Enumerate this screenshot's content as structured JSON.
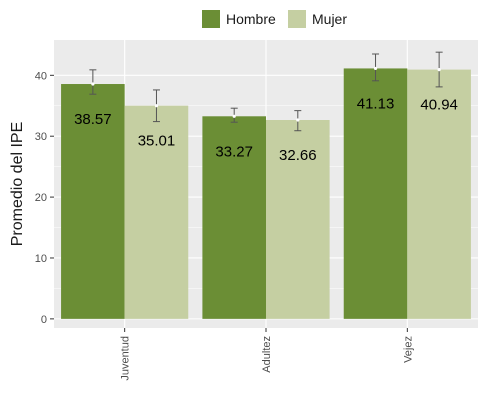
{
  "chart_data": {
    "type": "bar",
    "title": "",
    "xlabel": "",
    "ylabel": "Promedio del IPE",
    "categories": [
      "Juventud",
      "Adultez",
      "Vejez"
    ],
    "series": [
      {
        "name": "Hombre",
        "color": "#6b8e35",
        "values": [
          38.57,
          33.27,
          41.13
        ],
        "err_low": [
          36.9,
          32.3,
          39.1
        ],
        "err_high": [
          40.9,
          34.6,
          43.5
        ]
      },
      {
        "name": "Mujer",
        "color": "#c5cfa2",
        "values": [
          35.01,
          32.66,
          40.94
        ],
        "err_low": [
          32.4,
          30.9,
          38.1
        ],
        "err_high": [
          37.6,
          34.2,
          43.8
        ]
      }
    ],
    "data_labels": [
      [
        "38.57",
        "33.27",
        "41.13"
      ],
      [
        "35.01",
        "32.66",
        "40.94"
      ]
    ],
    "ylim": [
      -1.5,
      45.8
    ],
    "yticks": [
      0,
      10,
      20,
      30,
      40
    ],
    "grid": true,
    "legend_position": "top",
    "panel_background": "#ebebeb",
    "grid_color": "#ffffff",
    "error_bar_color": "#555555"
  }
}
